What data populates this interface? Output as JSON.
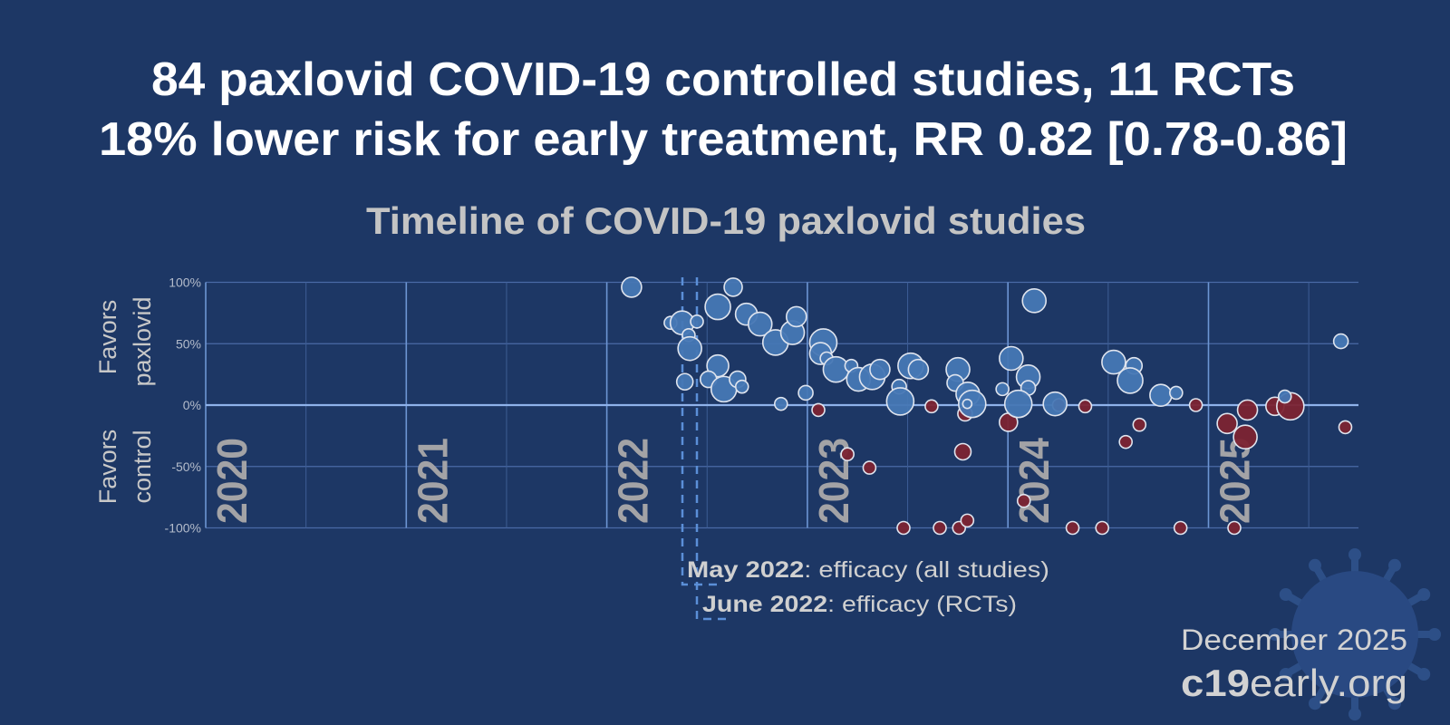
{
  "header": {
    "title_line1": "84 paxlovid COVID-19 controlled studies, 11 RCTs",
    "title_line2": "18% lower risk for early treatment, RR 0.82 [0.78-0.86]"
  },
  "footer": {
    "date": "December 2025",
    "site_bold": "c19",
    "site_rest": "early.org"
  },
  "chart_data": {
    "type": "scatter",
    "title": "Timeline of COVID-19 paxlovid studies",
    "ylabel_upper": [
      "Favors",
      "paxlovid"
    ],
    "ylabel_lower": [
      "Favors",
      "control"
    ],
    "yticks": [
      "100%",
      "50%",
      "0%",
      "-50%",
      "-100%"
    ],
    "ylim": [
      -100,
      100
    ],
    "xlim": [
      "2020-01-01",
      "2025-10-01"
    ],
    "xtick_labels": [
      "2020",
      "2021",
      "2022",
      "2023",
      "2024",
      "2025"
    ],
    "grid": true,
    "annotations": [
      {
        "date": "2022-05",
        "bold": "May 2022",
        "text": ": efficacy (all studies)"
      },
      {
        "date": "2022-06",
        "bold": "June 2022",
        "text": ": efficacy (RCTs)"
      }
    ],
    "colors": {
      "favors_treatment": "#4677b4",
      "favors_control": "#7c2331",
      "marker_outline": "#dfe4ee",
      "background": "#1d3765"
    },
    "series": [
      {
        "color": "#7c2331",
        "points": [
          {
            "date": "2023-01-21",
            "effect": -4,
            "size": 7
          },
          {
            "date": "2023-03-15",
            "effect": -40,
            "size": 7
          },
          {
            "date": "2023-04-24",
            "effect": -51,
            "size": 7
          },
          {
            "date": "2023-06-25",
            "effect": -100,
            "size": 7
          },
          {
            "date": "2023-08-15",
            "effect": -1,
            "size": 7
          },
          {
            "date": "2023-08-30",
            "effect": -100,
            "size": 7
          },
          {
            "date": "2023-10-04",
            "effect": -100,
            "size": 7
          },
          {
            "date": "2023-10-19",
            "effect": -94,
            "size": 7
          },
          {
            "date": "2023-10-11",
            "effect": -38,
            "size": 9
          },
          {
            "date": "2023-10-15",
            "effect": -7,
            "size": 8
          },
          {
            "date": "2024-01-02",
            "effect": -14,
            "size": 10
          },
          {
            "date": "2024-01-30",
            "effect": -78,
            "size": 7
          },
          {
            "date": "2024-04-03",
            "effect": 0,
            "size": 7
          },
          {
            "date": "2024-05-21",
            "effect": -1,
            "size": 7
          },
          {
            "date": "2024-04-28",
            "effect": -100,
            "size": 7
          },
          {
            "date": "2024-06-21",
            "effect": -100,
            "size": 7
          },
          {
            "date": "2024-08-03",
            "effect": -30,
            "size": 7
          },
          {
            "date": "2024-08-28",
            "effect": -16,
            "size": 7
          },
          {
            "date": "2024-11-11",
            "effect": -100,
            "size": 7
          },
          {
            "date": "2024-12-09",
            "effect": 0,
            "size": 7
          },
          {
            "date": "2025-02-04",
            "effect": -15,
            "size": 11
          },
          {
            "date": "2025-02-17",
            "effect": -100,
            "size": 7
          },
          {
            "date": "2025-03-13",
            "effect": -4,
            "size": 11
          },
          {
            "date": "2025-03-09",
            "effect": -26,
            "size": 13
          },
          {
            "date": "2025-05-02",
            "effect": -1,
            "size": 10
          },
          {
            "date": "2025-05-30",
            "effect": -1,
            "size": 15
          },
          {
            "date": "2025-09-07",
            "effect": -18,
            "size": 7
          }
        ]
      },
      {
        "color": "#4677b4",
        "points": [
          {
            "date": "2022-02-15",
            "effect": 96,
            "size": 11
          },
          {
            "date": "2022-04-27",
            "effect": 67,
            "size": 7
          },
          {
            "date": "2022-05-18",
            "effect": 67,
            "size": 13
          },
          {
            "date": "2022-06-14",
            "effect": 68,
            "size": 7
          },
          {
            "date": "2022-05-30",
            "effect": 57,
            "size": 7
          },
          {
            "date": "2022-06-01",
            "effect": 46,
            "size": 13
          },
          {
            "date": "2022-07-22",
            "effect": 80,
            "size": 14
          },
          {
            "date": "2022-08-19",
            "effect": 96,
            "size": 10
          },
          {
            "date": "2022-09-12",
            "effect": 74,
            "size": 12
          },
          {
            "date": "2022-10-07",
            "effect": 66,
            "size": 13
          },
          {
            "date": "2022-11-04",
            "effect": 51,
            "size": 14
          },
          {
            "date": "2022-12-05",
            "effect": 59,
            "size": 13
          },
          {
            "date": "2022-12-12",
            "effect": 72,
            "size": 11
          },
          {
            "date": "2022-05-23",
            "effect": 19,
            "size": 9
          },
          {
            "date": "2022-07-22",
            "effect": 32,
            "size": 12
          },
          {
            "date": "2022-07-05",
            "effect": 21,
            "size": 9
          },
          {
            "date": "2022-08-02",
            "effect": 13,
            "size": 14
          },
          {
            "date": "2022-08-27",
            "effect": 21,
            "size": 9
          },
          {
            "date": "2022-09-04",
            "effect": 15,
            "size": 7
          },
          {
            "date": "2022-11-14",
            "effect": 1,
            "size": 7
          },
          {
            "date": "2022-12-29",
            "effect": 10,
            "size": 8
          },
          {
            "date": "2023-01-30",
            "effect": 51,
            "size": 15
          },
          {
            "date": "2023-01-25",
            "effect": 42,
            "size": 12
          },
          {
            "date": "2023-02-05",
            "effect": 38,
            "size": 7
          },
          {
            "date": "2023-02-22",
            "effect": 29,
            "size": 14
          },
          {
            "date": "2023-03-22",
            "effect": 32,
            "size": 7
          },
          {
            "date": "2023-04-04",
            "effect": 21,
            "size": 13
          },
          {
            "date": "2023-04-29",
            "effect": 23,
            "size": 14
          },
          {
            "date": "2023-05-13",
            "effect": 29,
            "size": 11
          },
          {
            "date": "2023-06-17",
            "effect": 15,
            "size": 8
          },
          {
            "date": "2023-06-19",
            "effect": 3,
            "size": 15
          },
          {
            "date": "2023-07-08",
            "effect": 32,
            "size": 14
          },
          {
            "date": "2023-07-22",
            "effect": 29,
            "size": 11
          },
          {
            "date": "2023-10-02",
            "effect": 29,
            "size": 13
          },
          {
            "date": "2023-09-27",
            "effect": 18,
            "size": 9
          },
          {
            "date": "2023-10-20",
            "effect": 9,
            "size": 13
          },
          {
            "date": "2023-10-28",
            "effect": 1,
            "size": 15
          },
          {
            "date": "2023-10-19",
            "effect": 1,
            "size": 5
          },
          {
            "date": "2023-12-22",
            "effect": 13,
            "size": 7
          },
          {
            "date": "2024-01-07",
            "effect": 38,
            "size": 13
          },
          {
            "date": "2024-02-18",
            "effect": 85,
            "size": 13
          },
          {
            "date": "2024-02-07",
            "effect": 23,
            "size": 13
          },
          {
            "date": "2024-02-07",
            "effect": 14,
            "size": 8
          },
          {
            "date": "2024-01-20",
            "effect": 1,
            "size": 15
          },
          {
            "date": "2024-03-27",
            "effect": 1,
            "size": 13
          },
          {
            "date": "2024-07-12",
            "effect": 35,
            "size": 13
          },
          {
            "date": "2024-08-18",
            "effect": 32,
            "size": 9
          },
          {
            "date": "2024-08-11",
            "effect": 20,
            "size": 14
          },
          {
            "date": "2024-10-06",
            "effect": 8,
            "size": 12
          },
          {
            "date": "2024-11-03",
            "effect": 10,
            "size": 7
          },
          {
            "date": "2025-05-20",
            "effect": 7,
            "size": 7
          },
          {
            "date": "2025-08-30",
            "effect": 52,
            "size": 8
          }
        ]
      }
    ]
  }
}
